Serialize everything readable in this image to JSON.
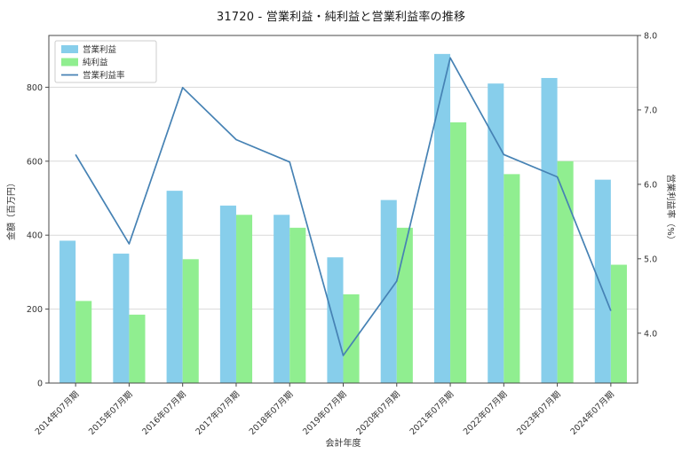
{
  "chart_data": {
    "type": "bar",
    "title": "31720 - 営業利益・純利益と営業利益率の推移",
    "xlabel": "会計年度",
    "ylabel_left": "金額（百万円）",
    "ylabel_right": "営業利益率（%）",
    "categories": [
      "2014年07月期",
      "2015年07月期",
      "2016年07月期",
      "2017年07月期",
      "2018年07月期",
      "2019年07月期",
      "2020年07月期",
      "2021年07月期",
      "2022年07月期",
      "2023年07月期",
      "2024年07月期"
    ],
    "series": [
      {
        "name": "営業利益",
        "kind": "bar",
        "axis": "left",
        "color": "#87CEEB",
        "values": [
          385,
          350,
          520,
          480,
          455,
          340,
          495,
          890,
          810,
          825,
          550
        ]
      },
      {
        "name": "純利益",
        "kind": "bar",
        "axis": "left",
        "color": "#90EE90",
        "values": [
          222,
          185,
          335,
          455,
          420,
          240,
          420,
          705,
          565,
          600,
          320
        ]
      },
      {
        "name": "営業利益率",
        "kind": "line",
        "axis": "right",
        "color": "#4682B4",
        "values": [
          6.4,
          5.2,
          7.3,
          6.6,
          6.3,
          3.7,
          4.7,
          7.7,
          6.4,
          6.1,
          4.3
        ]
      }
    ],
    "ylim_left": [
      0,
      940
    ],
    "ylim_right": [
      3.33,
      8.0
    ],
    "yticks_left": [
      0,
      200,
      400,
      600,
      800
    ],
    "yticks_right": [
      4.0,
      5.0,
      6.0,
      7.0,
      8.0
    ],
    "grid": true,
    "legend_position": "upper left",
    "colors": {
      "grid": "#d9d9d9",
      "spine": "#4a4a4a",
      "text": "#333333",
      "background": "#ffffff"
    }
  }
}
